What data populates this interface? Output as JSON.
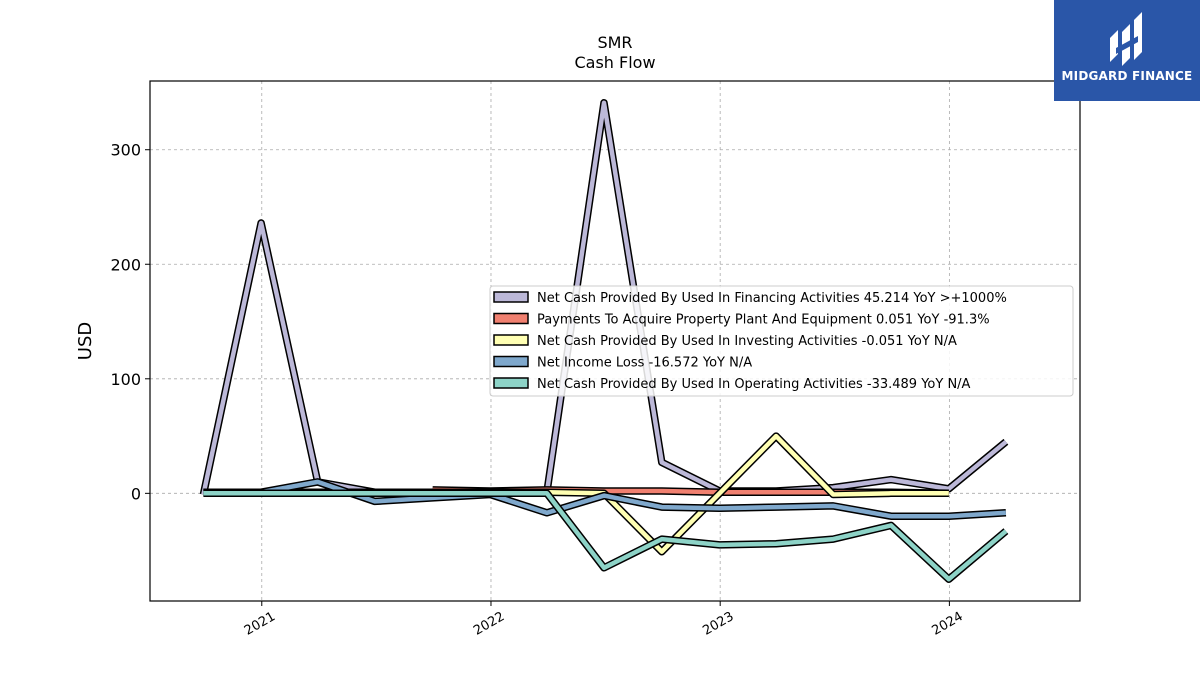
{
  "logo": {
    "text": "MIDGARD FINANCE",
    "color": "#2a56a8"
  },
  "chart_data": {
    "type": "line",
    "title": "SMR",
    "subtitle": "Cash Flow",
    "xlabel": "",
    "ylabel": "USD",
    "x_ticks": [
      "2021",
      "2022",
      "2023",
      "2024"
    ],
    "y_ticks": [
      0,
      100,
      200,
      300
    ],
    "xlim": [
      "2020-07-07",
      "2024-07-27"
    ],
    "ylim": [
      -94,
      360
    ],
    "grid": true,
    "legend_position": "center-right",
    "series": [
      {
        "name": "Net Cash Provided By Used In Financing Activities",
        "legend": "Net Cash Provided By Used In Financing Activities  45.214 YoY >+1000%",
        "color": "#bcb8d8",
        "points": [
          [
            "2020-09-30",
            -1
          ],
          [
            "2020-12-31",
            236
          ],
          [
            "2021-03-31",
            10
          ],
          [
            "2021-06-30",
            1
          ],
          [
            "2021-09-30",
            1
          ],
          [
            "2021-12-31",
            1
          ],
          [
            "2022-03-31",
            1
          ],
          [
            "2022-06-30",
            341
          ],
          [
            "2022-09-30",
            27
          ],
          [
            "2022-12-31",
            2
          ],
          [
            "2023-03-31",
            2
          ],
          [
            "2023-06-30",
            5
          ],
          [
            "2023-09-30",
            12
          ],
          [
            "2023-12-31",
            4
          ],
          [
            "2024-03-31",
            45
          ]
        ]
      },
      {
        "name": "Payments To Acquire Property Plant And Equipment",
        "legend": "Payments To Acquire Property Plant And Equipment  0.051 YoY -91.3%",
        "color": "#f08070",
        "points": [
          [
            "2021-09-30",
            3
          ],
          [
            "2021-12-31",
            2
          ],
          [
            "2022-03-31",
            3
          ],
          [
            "2022-06-30",
            2
          ],
          [
            "2022-09-30",
            2
          ],
          [
            "2022-12-31",
            1
          ],
          [
            "2023-03-31",
            1
          ],
          [
            "2023-06-30",
            1
          ],
          [
            "2023-09-30",
            1
          ],
          [
            "2023-12-31",
            0
          ]
        ]
      },
      {
        "name": "Net Cash Provided By Used In Investing Activities",
        "legend": "Net Cash Provided By Used In Investing Activities  -0.051 YoY N/A",
        "color": "#ffffb3",
        "points": [
          [
            "2020-09-30",
            1
          ],
          [
            "2020-12-31",
            1
          ],
          [
            "2021-03-31",
            1
          ],
          [
            "2021-06-30",
            1
          ],
          [
            "2021-09-30",
            1
          ],
          [
            "2021-12-31",
            1
          ],
          [
            "2022-03-31",
            1
          ],
          [
            "2022-06-30",
            0
          ],
          [
            "2022-09-30",
            -51
          ],
          [
            "2022-12-31",
            0
          ],
          [
            "2023-03-31",
            50
          ],
          [
            "2023-06-30",
            -1
          ],
          [
            "2023-09-30",
            0
          ],
          [
            "2023-12-31",
            0
          ]
        ]
      },
      {
        "name": "Net Income Loss",
        "legend": "Net Income Loss  -16.572 YoY N/A",
        "color": "#7fa8cc",
        "points": [
          [
            "2020-09-30",
            1
          ],
          [
            "2020-12-31",
            1
          ],
          [
            "2021-03-31",
            10
          ],
          [
            "2021-06-30",
            -7
          ],
          [
            "2021-09-30",
            -4
          ],
          [
            "2021-12-31",
            -1
          ],
          [
            "2022-03-31",
            -17
          ],
          [
            "2022-06-30",
            -2
          ],
          [
            "2022-09-30",
            -12
          ],
          [
            "2022-12-31",
            -13
          ],
          [
            "2023-03-31",
            -12
          ],
          [
            "2023-06-30",
            -11
          ],
          [
            "2023-09-30",
            -20
          ],
          [
            "2023-12-31",
            -20
          ],
          [
            "2024-03-31",
            -17
          ]
        ]
      },
      {
        "name": "Net Cash Provided By Used In Operating Activities",
        "legend": "Net Cash Provided By Used In Operating Activities  -33.489 YoY N/A",
        "color": "#8dd3c7",
        "points": [
          [
            "2020-09-30",
            0
          ],
          [
            "2020-12-31",
            0
          ],
          [
            "2021-03-31",
            0
          ],
          [
            "2021-06-30",
            0
          ],
          [
            "2021-09-30",
            0
          ],
          [
            "2021-12-31",
            0
          ],
          [
            "2022-03-31",
            0
          ],
          [
            "2022-06-30",
            -65
          ],
          [
            "2022-09-30",
            -40
          ],
          [
            "2022-12-31",
            -45
          ],
          [
            "2023-03-31",
            -44
          ],
          [
            "2023-06-30",
            -40
          ],
          [
            "2023-09-30",
            -28
          ],
          [
            "2023-12-31",
            -75
          ],
          [
            "2024-03-31",
            -33
          ]
        ]
      }
    ]
  }
}
